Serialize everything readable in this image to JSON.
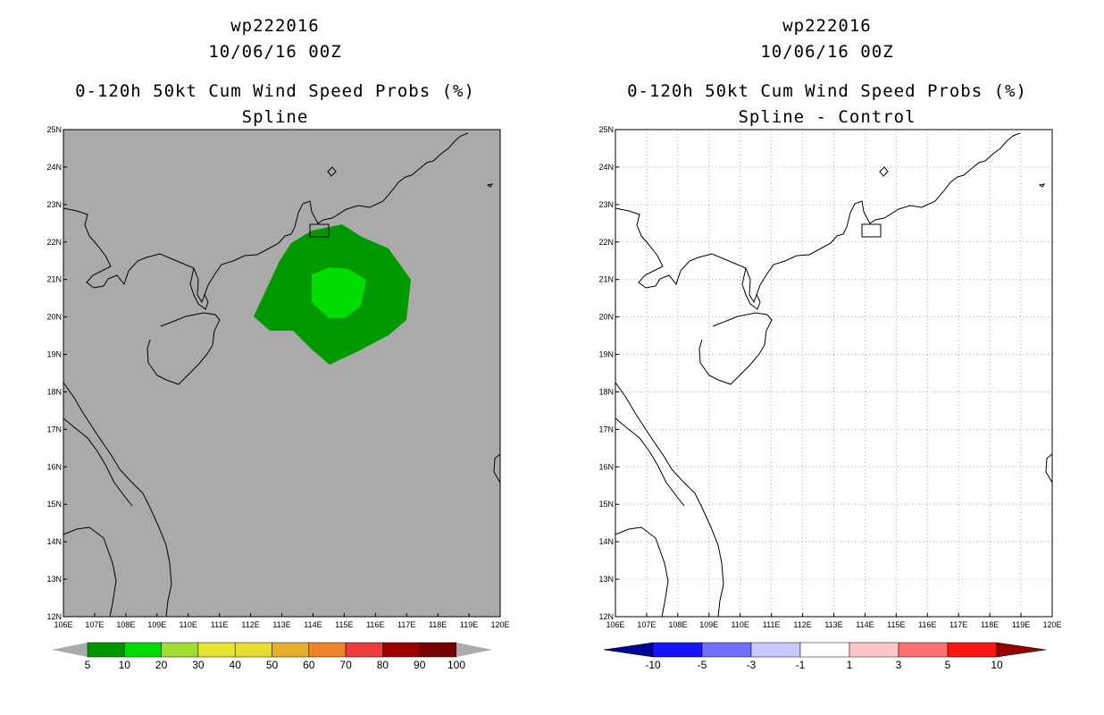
{
  "left_panel": {
    "title_lines": [
      "wp222016",
      "10/06/16 00Z",
      "0-120h 50kt Cum Wind Speed Probs (%)",
      "Spline"
    ],
    "background_color": "#aaaaaa",
    "probability_regions": [
      {
        "level": "5-10",
        "color": "#009900"
      },
      {
        "level": "10-20",
        "color": "#00dd00"
      }
    ],
    "colorbar": {
      "labels": [
        "5",
        "10",
        "20",
        "30",
        "40",
        "50",
        "60",
        "70",
        "80",
        "90",
        "100"
      ],
      "colors": [
        "#009600",
        "#00dc00",
        "#a0dc32",
        "#e6e632",
        "#e6dc32",
        "#e6af2d",
        "#f08228",
        "#f03c3c",
        "#a00000",
        "#780000",
        "#9b00e6"
      ]
    }
  },
  "right_panel": {
    "title_lines": [
      "wp222016",
      "10/06/16 00Z",
      "0-120h 50kt Cum Wind Speed Probs (%)",
      "Spline - Control"
    ],
    "background_color": "#ffffff",
    "colorbar": {
      "labels": [
        "-10",
        "-5",
        "-3",
        "-1",
        "1",
        "3",
        "5",
        "10"
      ],
      "colors": [
        "#000096",
        "#1414ff",
        "#7070ff",
        "#c8c8ff",
        "#ffffff",
        "#ffc8c8",
        "#ff7070",
        "#ff1414",
        "#960000"
      ]
    }
  },
  "map": {
    "lon_labels": [
      "106E",
      "107E",
      "108E",
      "109E",
      "110E",
      "111E",
      "112E",
      "113E",
      "114E",
      "115E",
      "116E",
      "117E",
      "118E",
      "119E",
      "120E"
    ],
    "lat_labels": [
      "25N",
      "24N",
      "23N",
      "22N",
      "21N",
      "20N",
      "19N",
      "18N",
      "17N",
      "16N",
      "15N",
      "14N",
      "13N",
      "12N"
    ]
  }
}
